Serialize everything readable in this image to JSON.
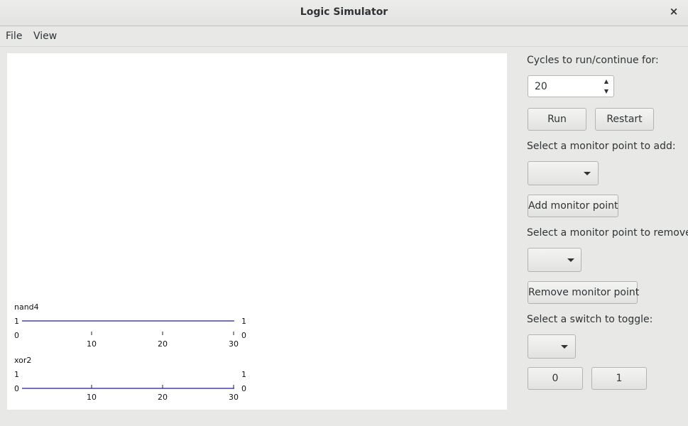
{
  "window": {
    "title": "Logic Simulator",
    "close_icon": "×"
  },
  "menubar": {
    "items": [
      "File",
      "View"
    ]
  },
  "controls": {
    "cycles_label": "Cycles to run/continue for:",
    "cycles_value": "20",
    "run_label": "Run",
    "restart_label": "Restart",
    "add_label": "Select a monitor point to add:",
    "add_selected": "",
    "add_button": "Add monitor point",
    "remove_label": "Select a monitor point to remove:",
    "remove_selected": "",
    "remove_button": "Remove monitor point",
    "switch_label": "Select a switch to toggle:",
    "switch_selected": "",
    "zero_button": "0",
    "one_button": "1"
  },
  "traces": [
    {
      "name": "nand4",
      "high_label": "1",
      "low_label": "0",
      "ticks": [
        "10",
        "20",
        "30"
      ],
      "value": 1,
      "color": "#1a1aa6"
    },
    {
      "name": "xor2",
      "high_label": "1",
      "low_label": "0",
      "ticks": [
        "10",
        "20",
        "30"
      ],
      "value": 0,
      "color": "#1a1aa6"
    }
  ]
}
